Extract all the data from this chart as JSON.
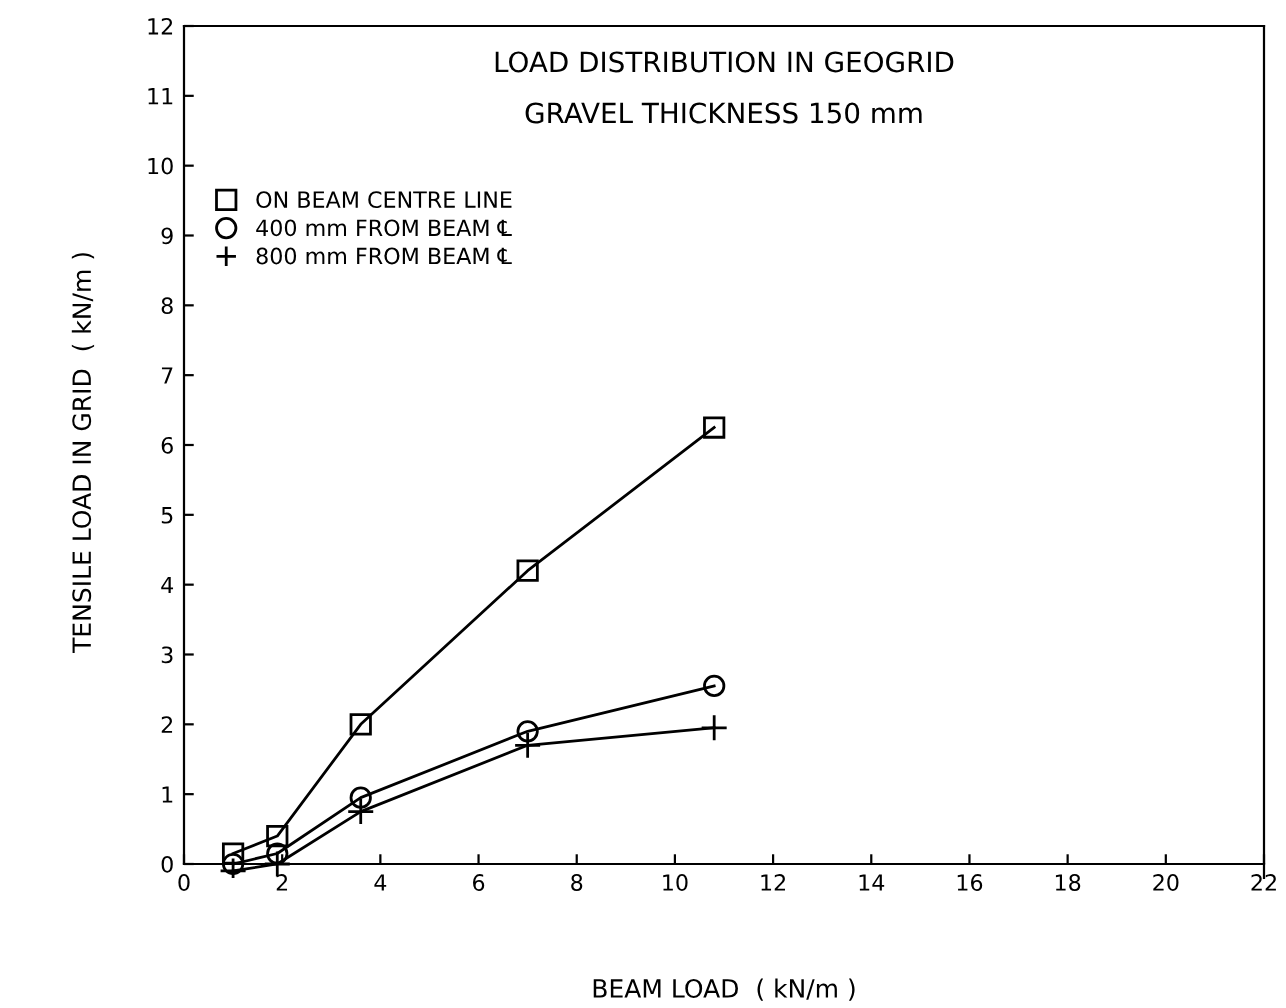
{
  "chart_data": {
    "type": "line",
    "title": "LOAD DISTRIBUTION IN GEOGRID",
    "subtitle": "GRAVEL THICKNESS 150 mm",
    "xlabel": "BEAM LOAD  ( kN/m )",
    "ylabel": "TENSILE LOAD IN GRID  ( kN/m )",
    "x": [
      1.0,
      1.9,
      3.6,
      7.0,
      10.8
    ],
    "series": [
      {
        "name": "ON BEAM CENTRE LINE",
        "color": "#000000",
        "marker": "square",
        "values": [
          0.15,
          0.4,
          2.0,
          4.2,
          6.25
        ]
      },
      {
        "name": "400 mm FROM BEAM ℄",
        "color": "#000000",
        "marker": "circle",
        "values": [
          0.0,
          0.15,
          0.95,
          1.9,
          2.55
        ]
      },
      {
        "name": "800 mm FROM BEAM ℄",
        "color": "#000000",
        "marker": "cross",
        "values": [
          -0.1,
          0.0,
          0.75,
          1.7,
          1.95
        ]
      }
    ],
    "xlim": [
      0,
      22
    ],
    "xticks": [
      0,
      2,
      4,
      6,
      8,
      10,
      12,
      14,
      16,
      18,
      20,
      22
    ],
    "ylim": [
      -0.2,
      12
    ],
    "yticks": [
      0,
      1,
      2,
      3,
      4,
      5,
      6,
      7,
      8,
      9,
      10,
      11,
      12
    ],
    "grid": false,
    "legend": "top left",
    "line_style": "solid"
  }
}
